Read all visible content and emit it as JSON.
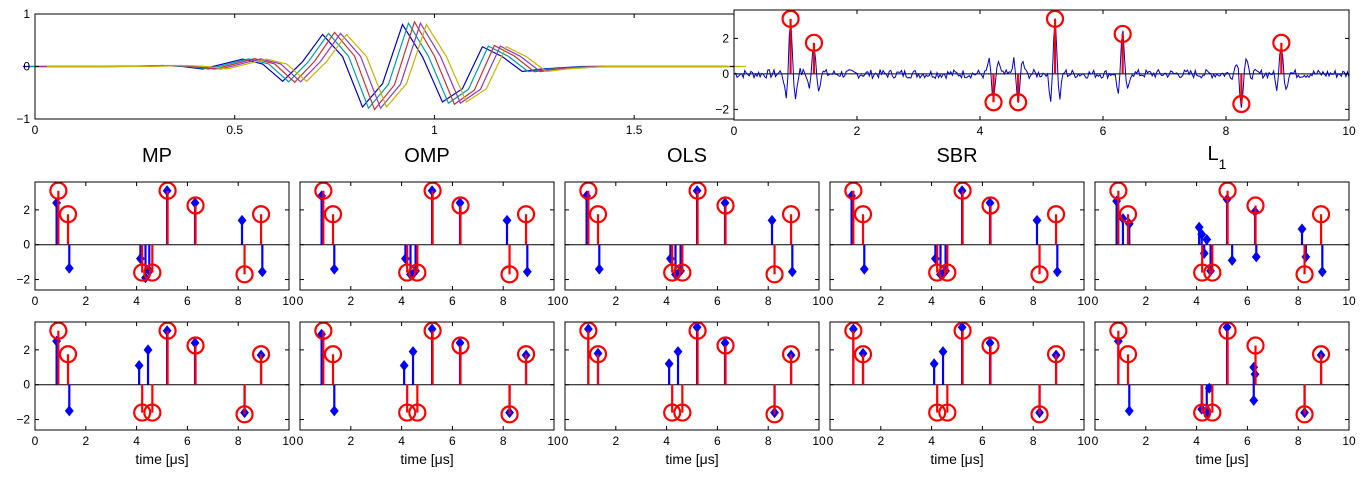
{
  "figure": {
    "colors": {
      "truth": "#ff0000",
      "estimate": "#0000ff",
      "signal": "#0000cc",
      "frame": "#000000"
    },
    "wave_colors": [
      "#0000c8",
      "#00a0a0",
      "#c83232",
      "#8c3cc8",
      "#c8b400"
    ]
  },
  "chart_data": [
    {
      "id": "wavelet",
      "type": "line",
      "xlim": [
        0,
        1.75
      ],
      "ylim": [
        -1,
        1
      ],
      "xticks": [
        0,
        0.5,
        1,
        1.5
      ],
      "xtick_labels": [
        "0",
        "0.5",
        "1",
        "1.5"
      ],
      "yticks": [
        -1,
        0,
        1
      ],
      "ytick_labels": [
        "−1",
        "0",
        "1"
      ],
      "series_x": [
        0,
        0.1,
        0.2,
        0.3,
        0.35,
        0.4,
        0.45,
        0.5,
        0.55,
        0.6,
        0.65,
        0.7,
        0.75,
        0.8,
        0.85,
        0.9,
        0.95,
        1.0,
        1.05,
        1.1,
        1.15,
        1.2,
        1.25,
        1.3,
        1.4,
        1.5,
        1.6,
        1.75
      ],
      "series_y": [
        0,
        0,
        0,
        0.01,
        0.02,
        0.0,
        -0.05,
        0.05,
        0.15,
        0.05,
        -0.3,
        0.1,
        0.65,
        0.2,
        -0.82,
        -0.35,
        0.85,
        0.2,
        -0.72,
        -0.45,
        0.4,
        0.2,
        -0.1,
        -0.05,
        0.0,
        0.0,
        0.0,
        0.0
      ],
      "shifts": [
        -0.03,
        -0.015,
        0,
        0.015,
        0.03
      ]
    },
    {
      "id": "signal",
      "type": "line+stem",
      "xlim": [
        0,
        10
      ],
      "ylim": [
        -2.6,
        3.6
      ],
      "xticks": [
        0,
        2,
        4,
        6,
        8,
        10
      ],
      "xtick_labels": [
        "0",
        "2",
        "4",
        "6",
        "8",
        "10"
      ],
      "yticks": [
        -2,
        0,
        2
      ],
      "ytick_labels": [
        "−2",
        "0",
        "2"
      ],
      "truth": [
        {
          "x": 0.92,
          "y": 3.1
        },
        {
          "x": 1.3,
          "y": 1.75
        },
        {
          "x": 4.22,
          "y": -1.6
        },
        {
          "x": 4.62,
          "y": -1.6
        },
        {
          "x": 5.22,
          "y": 3.1
        },
        {
          "x": 6.32,
          "y": 2.25
        },
        {
          "x": 8.25,
          "y": -1.7
        },
        {
          "x": 8.9,
          "y": 1.75
        }
      ]
    },
    {
      "id": "grid",
      "type": "stem",
      "xlim": [
        0,
        10
      ],
      "ylim": [
        -2.6,
        3.6
      ],
      "xticks": [
        0,
        2,
        4,
        6,
        8,
        10
      ],
      "xtick_labels": [
        "0",
        "2",
        "4",
        "6",
        "8",
        "10"
      ],
      "yticks": [
        -2,
        0,
        2
      ],
      "ytick_labels": [
        "−2",
        "0",
        "2"
      ],
      "method_titles": [
        "MP",
        "OMP",
        "OLS",
        "SBR",
        "L"
      ],
      "l1_subscript": "1",
      "xlabel": "time [μs]",
      "truth": [
        {
          "x": 0.92,
          "y": 3.1
        },
        {
          "x": 1.3,
          "y": 1.75
        },
        {
          "x": 4.22,
          "y": -1.6
        },
        {
          "x": 4.62,
          "y": -1.6
        },
        {
          "x": 5.22,
          "y": 3.1
        },
        {
          "x": 6.32,
          "y": 2.25
        },
        {
          "x": 8.25,
          "y": -1.7
        },
        {
          "x": 8.9,
          "y": 1.75
        }
      ],
      "estimates": [
        [
          [
            {
              "x": 0.85,
              "y": 2.4
            },
            {
              "x": 1.35,
              "y": -1.35
            },
            {
              "x": 4.15,
              "y": -0.8
            },
            {
              "x": 4.35,
              "y": -1.9
            },
            {
              "x": 4.5,
              "y": -1.5
            },
            {
              "x": 5.2,
              "y": 3.1
            },
            {
              "x": 6.3,
              "y": 2.4
            },
            {
              "x": 8.15,
              "y": 1.4
            },
            {
              "x": 8.95,
              "y": -1.55
            }
          ],
          [
            {
              "x": 0.85,
              "y": 2.8
            },
            {
              "x": 1.35,
              "y": -1.4
            },
            {
              "x": 4.15,
              "y": -0.8
            },
            {
              "x": 4.35,
              "y": -1.7
            },
            {
              "x": 4.55,
              "y": -1.5
            },
            {
              "x": 5.2,
              "y": 3.1
            },
            {
              "x": 6.3,
              "y": 2.4
            },
            {
              "x": 8.15,
              "y": 1.4
            },
            {
              "x": 8.95,
              "y": -1.55
            }
          ],
          [
            {
              "x": 0.85,
              "y": 2.8
            },
            {
              "x": 1.35,
              "y": -1.4
            },
            {
              "x": 4.15,
              "y": -0.8
            },
            {
              "x": 4.35,
              "y": -1.7
            },
            {
              "x": 4.55,
              "y": -1.5
            },
            {
              "x": 5.2,
              "y": 3.1
            },
            {
              "x": 6.3,
              "y": 2.4
            },
            {
              "x": 8.15,
              "y": 1.4
            },
            {
              "x": 8.95,
              "y": -1.55
            }
          ],
          [
            {
              "x": 0.85,
              "y": 2.8
            },
            {
              "x": 1.35,
              "y": -1.4
            },
            {
              "x": 4.15,
              "y": -0.8
            },
            {
              "x": 4.35,
              "y": -1.7
            },
            {
              "x": 4.55,
              "y": -1.5
            },
            {
              "x": 5.2,
              "y": 3.1
            },
            {
              "x": 6.3,
              "y": 2.4
            },
            {
              "x": 8.15,
              "y": 1.4
            },
            {
              "x": 8.95,
              "y": -1.55
            }
          ],
          [
            {
              "x": 0.85,
              "y": 2.5
            },
            {
              "x": 1.1,
              "y": 1.5
            },
            {
              "x": 1.35,
              "y": 1.2
            },
            {
              "x": 4.1,
              "y": 1.0
            },
            {
              "x": 4.2,
              "y": 0.6
            },
            {
              "x": 4.3,
              "y": -0.5
            },
            {
              "x": 4.4,
              "y": 0.3
            },
            {
              "x": 4.55,
              "y": -1.5
            },
            {
              "x": 5.2,
              "y": 2.6
            },
            {
              "x": 5.4,
              "y": -0.9
            },
            {
              "x": 6.3,
              "y": 1.9
            },
            {
              "x": 6.35,
              "y": -0.7
            },
            {
              "x": 8.15,
              "y": 0.9
            },
            {
              "x": 8.3,
              "y": -0.7
            },
            {
              "x": 8.95,
              "y": -1.55
            }
          ]
        ],
        [
          [
            {
              "x": 0.85,
              "y": 2.5
            },
            {
              "x": 1.35,
              "y": -1.5
            },
            {
              "x": 4.1,
              "y": 1.1
            },
            {
              "x": 4.45,
              "y": 2.0
            },
            {
              "x": 5.2,
              "y": 3.1
            },
            {
              "x": 6.3,
              "y": 2.4
            },
            {
              "x": 8.25,
              "y": -1.6
            },
            {
              "x": 8.9,
              "y": 1.7
            }
          ],
          [
            {
              "x": 0.85,
              "y": 2.9
            },
            {
              "x": 1.35,
              "y": -1.5
            },
            {
              "x": 4.1,
              "y": 1.1
            },
            {
              "x": 4.45,
              "y": 1.9
            },
            {
              "x": 5.2,
              "y": 3.2
            },
            {
              "x": 6.3,
              "y": 2.4
            },
            {
              "x": 8.25,
              "y": -1.6
            },
            {
              "x": 8.9,
              "y": 1.7
            }
          ],
          [
            {
              "x": 0.92,
              "y": 3.2
            },
            {
              "x": 1.3,
              "y": 1.8
            },
            {
              "x": 4.1,
              "y": 1.2
            },
            {
              "x": 4.45,
              "y": 1.9
            },
            {
              "x": 5.2,
              "y": 3.3
            },
            {
              "x": 6.3,
              "y": 2.4
            },
            {
              "x": 8.25,
              "y": -1.6
            },
            {
              "x": 8.9,
              "y": 1.7
            }
          ],
          [
            {
              "x": 0.92,
              "y": 3.2
            },
            {
              "x": 1.3,
              "y": 1.8
            },
            {
              "x": 4.1,
              "y": 1.2
            },
            {
              "x": 4.45,
              "y": 1.9
            },
            {
              "x": 5.2,
              "y": 3.3
            },
            {
              "x": 6.3,
              "y": 2.4
            },
            {
              "x": 8.25,
              "y": -1.6
            },
            {
              "x": 8.9,
              "y": 1.7
            }
          ],
          [
            {
              "x": 0.92,
              "y": 2.5
            },
            {
              "x": 1.35,
              "y": -1.5
            },
            {
              "x": 4.2,
              "y": -1.4
            },
            {
              "x": 4.4,
              "y": -1.6
            },
            {
              "x": 4.5,
              "y": -0.2
            },
            {
              "x": 5.2,
              "y": 3.3
            },
            {
              "x": 6.25,
              "y": 1.0
            },
            {
              "x": 6.3,
              "y": 0.6
            },
            {
              "x": 6.25,
              "y": -0.9
            },
            {
              "x": 8.25,
              "y": -1.6
            },
            {
              "x": 8.9,
              "y": 1.7
            }
          ]
        ]
      ]
    }
  ]
}
